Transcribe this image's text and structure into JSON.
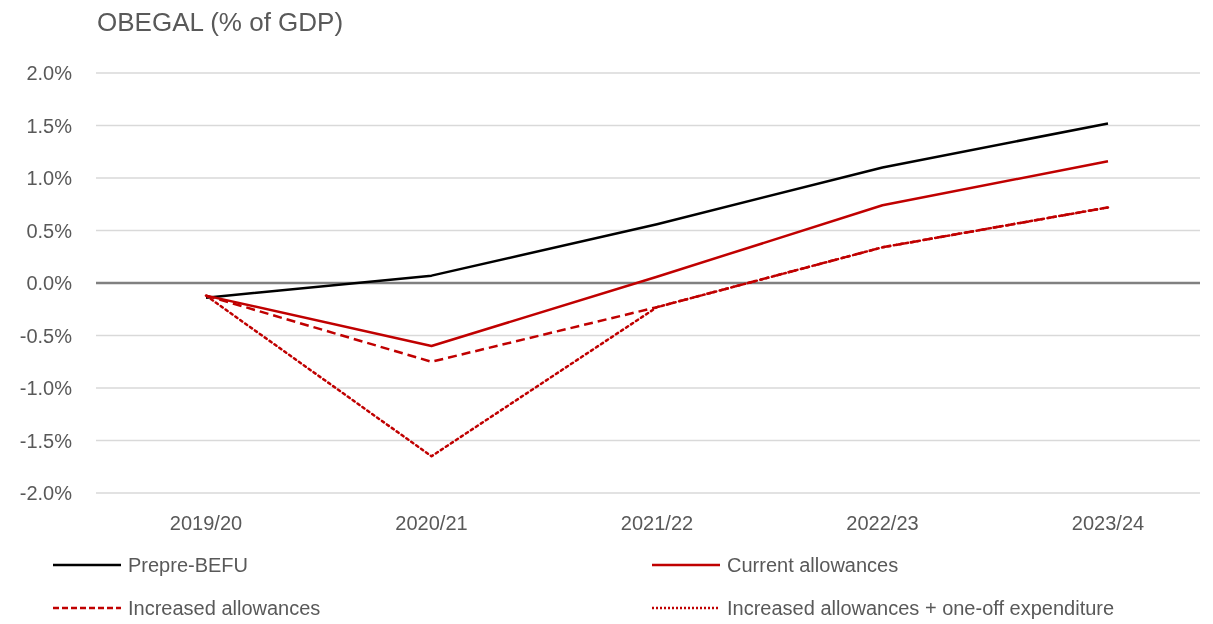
{
  "chart_data": {
    "type": "line",
    "title": "OBEGAL (% of GDP)",
    "categories": [
      "2019/20",
      "2020/21",
      "2021/22",
      "2022/23",
      "2023/24"
    ],
    "series": [
      {
        "name": "Prepre-BEFU",
        "color": "#000000",
        "line_style": "solid",
        "values": [
          -0.14,
          0.07,
          0.56,
          1.1,
          1.52
        ]
      },
      {
        "name": "Current allowances",
        "color": "#c00000",
        "line_style": "solid",
        "values": [
          -0.12,
          -0.6,
          0.06,
          0.74,
          1.16
        ]
      },
      {
        "name": "Increased allowances",
        "color": "#c00000",
        "line_style": "dashed",
        "values": [
          -0.12,
          -0.75,
          -0.23,
          0.34,
          0.72
        ]
      },
      {
        "name": "Increased allowances + one-off expenditure",
        "color": "#c00000",
        "line_style": "dotted",
        "values": [
          -0.12,
          -1.65,
          -0.23,
          0.34,
          0.72
        ]
      }
    ],
    "ylim": [
      -2,
      2
    ],
    "yticks": [
      {
        "value": -2,
        "label": "-2.0%"
      },
      {
        "value": -1.5,
        "label": "-1.5%"
      },
      {
        "value": -1,
        "label": "-1.0%"
      },
      {
        "value": -0.5,
        "label": "-0.5%"
      },
      {
        "value": 0,
        "label": "0.0%"
      },
      {
        "value": 0.5,
        "label": "0.5%"
      },
      {
        "value": 1,
        "label": "1.0%"
      },
      {
        "value": 1.5,
        "label": "1.5%"
      },
      {
        "value": 2,
        "label": "2.0%"
      }
    ],
    "grid": "y",
    "legend": "bottom"
  }
}
